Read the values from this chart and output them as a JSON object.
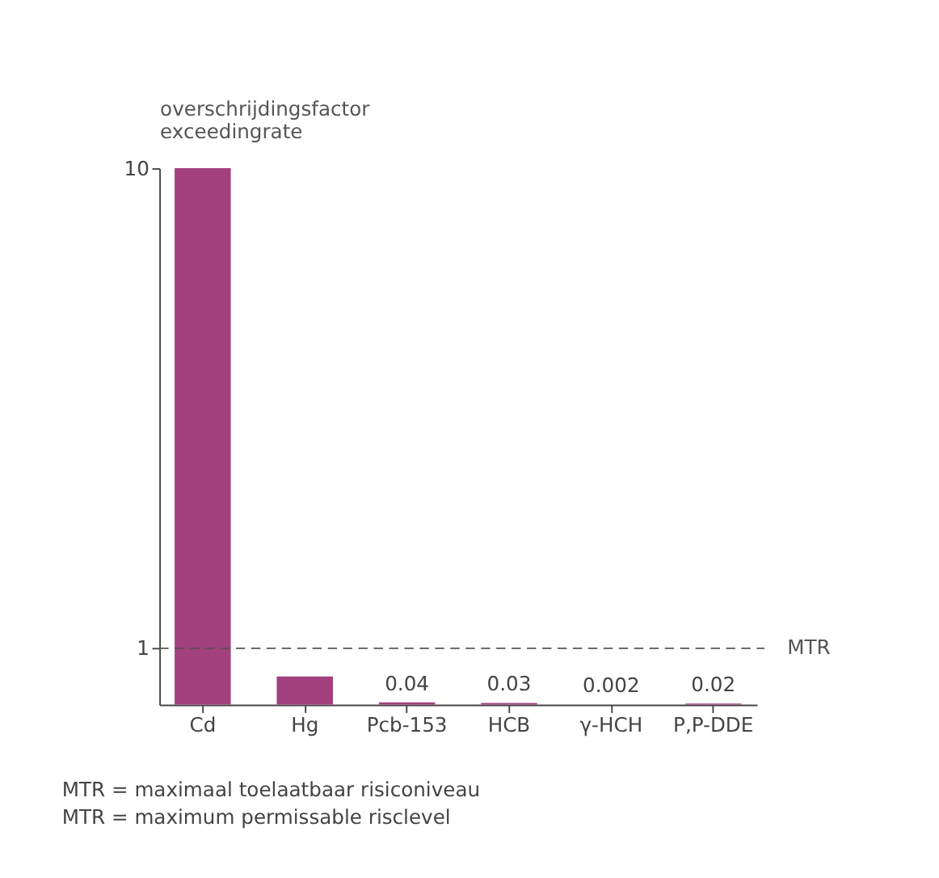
{
  "chart_data": {
    "type": "bar",
    "ylabel": "overschrijdingsfactor\nexceedingrate",
    "categories": [
      "Cd",
      "Hg",
      "Pcb-153",
      "HCB",
      "γ-HCH",
      "P,P-DDE"
    ],
    "values": [
      10,
      0.5,
      0.04,
      0.03,
      0.002,
      0.02
    ],
    "value_labels": [
      null,
      null,
      "0.04",
      "0.03",
      "0.002",
      "0.02"
    ],
    "color": "#a3407e",
    "ylim": [
      0,
      10
    ],
    "yticks": [
      1,
      10
    ],
    "grid": false,
    "ref_lines": [
      {
        "axis": "y",
        "value": 1,
        "label": "MTR",
        "line_style": "dashed",
        "color": "#555555"
      }
    ],
    "annotations": [
      "MTR  = maximaal toelaatbaar risiconiveau",
      "MTR  = maximum permissable risclevel"
    ]
  }
}
